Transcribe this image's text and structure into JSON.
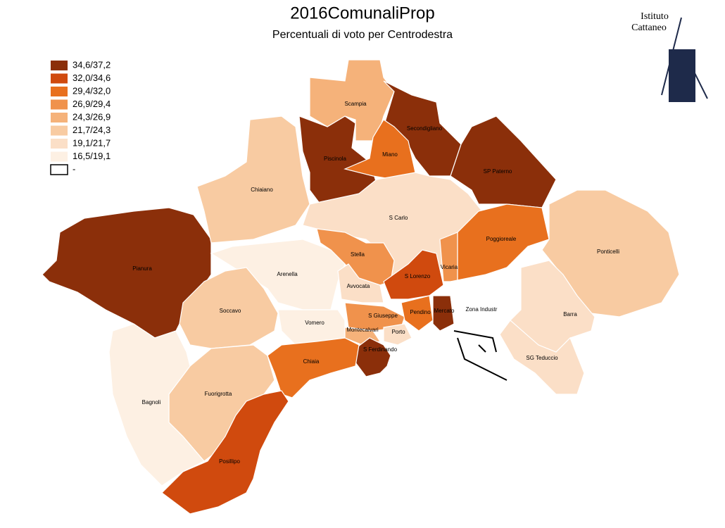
{
  "title": "2016ComunaliProp",
  "subtitle": "Percentuali di voto per Centrodestra",
  "logo": {
    "line1": "Istituto",
    "line2": "Cattaneo"
  },
  "legend": [
    {
      "label": "34,6/37,2",
      "color": "#8b2f0a"
    },
    {
      "label": "32,0/34,6",
      "color": "#d04a0e"
    },
    {
      "label": "29,4/32,0",
      "color": "#e8701e"
    },
    {
      "label": "26,9/29,4",
      "color": "#f0924c"
    },
    {
      "label": "24,3/26,9",
      "color": "#f5b27a"
    },
    {
      "label": "21,7/24,3",
      "color": "#f8cba2"
    },
    {
      "label": "19,1/21,7",
      "color": "#fbdfc7"
    },
    {
      "label": "16,5/19,1",
      "color": "#fdf0e3"
    },
    {
      "label": "-",
      "color": "#ffffff"
    }
  ],
  "regions": [
    {
      "label": "Pianura",
      "color": "#8b2f0a"
    },
    {
      "label": "Chiaiano",
      "color": "#f8cba2"
    },
    {
      "label": "Piscinola",
      "color": "#8b2f0a"
    },
    {
      "label": "Scampia",
      "color": "#f5b27a"
    },
    {
      "label": "Secondigliano",
      "color": "#8b2f0a"
    },
    {
      "label": "Miano",
      "color": "#e8701e"
    },
    {
      "label": "SP Paterno",
      "color": "#8b2f0a"
    },
    {
      "label": "S Carlo",
      "color": "#fbdfc7"
    },
    {
      "label": "Poggioreale",
      "color": "#e8701e"
    },
    {
      "label": "Ponticelli",
      "color": "#f8cba2"
    },
    {
      "label": "Stella",
      "color": "#f0924c"
    },
    {
      "label": "Vicaria",
      "color": "#f0924c"
    },
    {
      "label": "S Lorenzo",
      "color": "#d04a0e"
    },
    {
      "label": "Arenella",
      "color": "#fdf0e3"
    },
    {
      "label": "Avvocata",
      "color": "#fbdfc7"
    },
    {
      "label": "Soccavo",
      "color": "#f8cba2"
    },
    {
      "label": "Vomero",
      "color": "#fdf0e3"
    },
    {
      "label": "S Giuseppe",
      "color": "#f0924c"
    },
    {
      "label": "Montecalvari",
      "color": "#f5b27a"
    },
    {
      "label": "Porto",
      "color": "#fbdfc7"
    },
    {
      "label": "Pendino",
      "color": "#e8701e"
    },
    {
      "label": "Mercato",
      "color": "#8b2f0a"
    },
    {
      "label": "Zona Industr",
      "color": "#ffffff"
    },
    {
      "label": "Barra",
      "color": "#fbdfc7"
    },
    {
      "label": "SG Teduccio",
      "color": "#fbdfc7"
    },
    {
      "label": "S Ferdinando",
      "color": "#8b2f0a"
    },
    {
      "label": "Chiaia",
      "color": "#e8701e"
    },
    {
      "label": "Fuorigrotta",
      "color": "#f8cba2"
    },
    {
      "label": "Posillipo",
      "color": "#d04a0e"
    },
    {
      "label": "Bagnoli",
      "color": "#fdf0e3"
    }
  ]
}
